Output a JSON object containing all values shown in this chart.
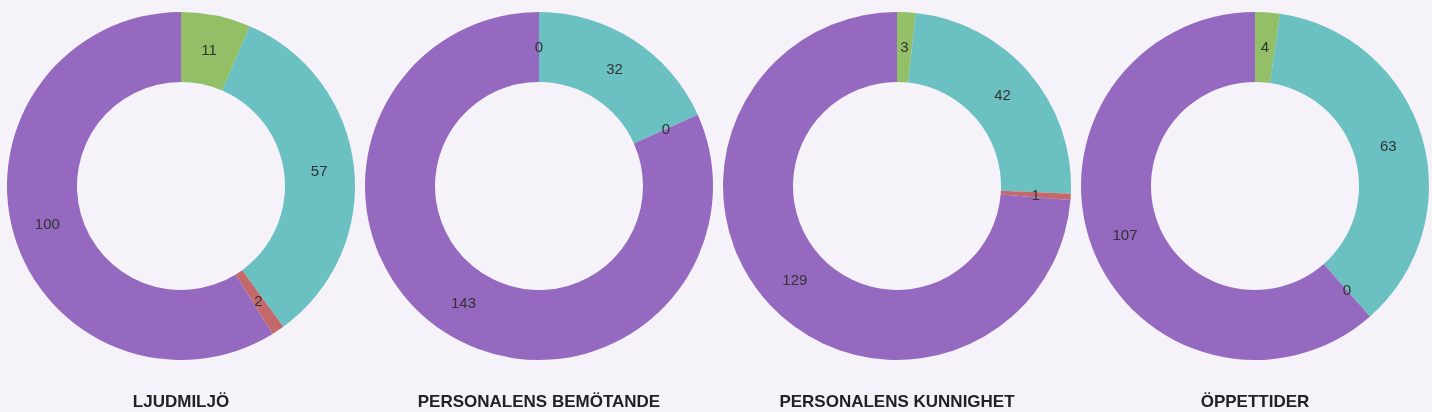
{
  "chart_data": [
    {
      "type": "donut",
      "title": "LJUDMILJÖ",
      "categories": [
        null,
        null,
        null,
        null
      ],
      "values": [
        11,
        57,
        2,
        100
      ],
      "colors": [
        "#93bf66",
        "#6bc0c1",
        "#c4696a",
        "#9569c0"
      ],
      "value_labels": [
        "11",
        "57",
        "2",
        "100"
      ]
    },
    {
      "type": "donut",
      "title": "PERSONALENS BEMÖTANDE",
      "categories": [
        null,
        null,
        null,
        null
      ],
      "values": [
        0,
        32,
        0,
        143
      ],
      "colors": [
        "#93bf66",
        "#6bc0c1",
        "#c4696a",
        "#9569c0"
      ],
      "value_labels": [
        "0",
        "32",
        "0",
        "143"
      ]
    },
    {
      "type": "donut",
      "title": "PERSONALENS KUNNIGHET",
      "categories": [
        null,
        null,
        null,
        null
      ],
      "values": [
        3,
        42,
        1,
        129
      ],
      "colors": [
        "#93bf66",
        "#6bc0c1",
        "#c4696a",
        "#9569c0"
      ],
      "value_labels": [
        "3",
        "42",
        "1",
        "129"
      ]
    },
    {
      "type": "donut",
      "title": "ÖPPETTIDER",
      "categories": [
        null,
        null,
        null,
        null
      ],
      "values": [
        4,
        63,
        0,
        107
      ],
      "colors": [
        "#93bf66",
        "#6bc0c1",
        "#c4696a",
        "#9569c0"
      ],
      "value_labels": [
        "4",
        "63",
        "0",
        "107"
      ]
    }
  ]
}
